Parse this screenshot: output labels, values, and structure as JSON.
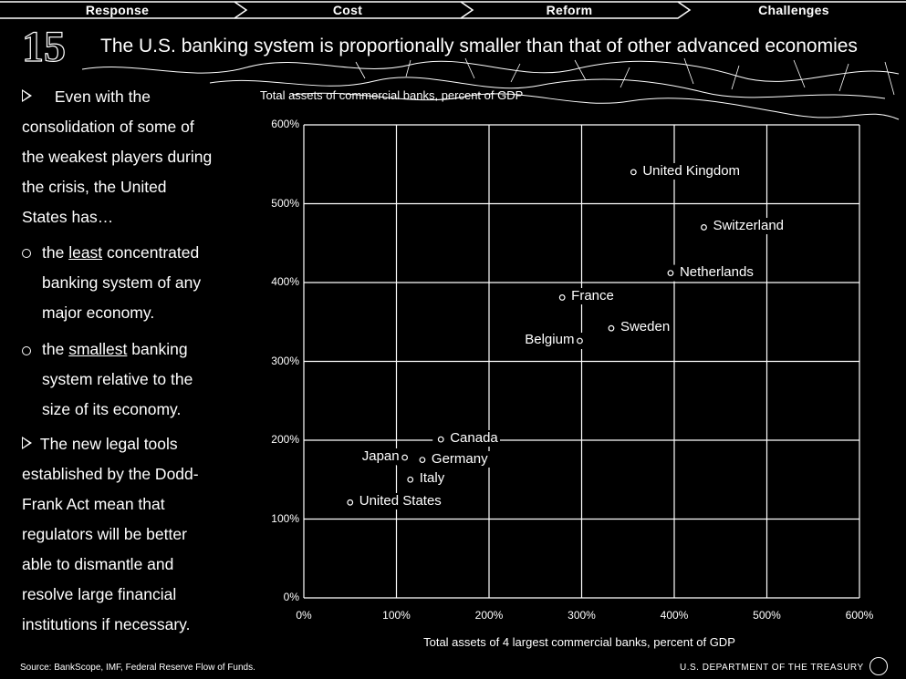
{
  "nav": {
    "tabs": [
      {
        "label": "Response"
      },
      {
        "label": "Cost"
      },
      {
        "label": "Reform"
      },
      {
        "label": "Challenges"
      }
    ]
  },
  "slide": {
    "number": "15",
    "title": "The U.S. banking system is proportionally smaller than that of other advanced economies"
  },
  "left_text": {
    "intro_1": "Even with the",
    "intro_2": "consolidation of some of",
    "intro_3": "the weakest players during",
    "intro_4": "the crisis, the United",
    "intro_5": "States has…",
    "b1_pre": "the ",
    "b1_u": "least",
    "b1_post": " concentrated",
    "b1_2": "banking system of any",
    "b1_3": "major economy.",
    "b2_pre": "the ",
    "b2_u": "smallest",
    "b2_post": " banking",
    "b2_2": "system relative to the",
    "b2_3": "size of its economy.",
    "p2_1": "The new legal tools",
    "p2_2": "established by the Dodd-",
    "p2_3": "Frank Act mean that",
    "p2_4": "regulators will be better",
    "p2_5": "able to dismantle and",
    "p2_6": "resolve large financial",
    "p2_7": "institutions if necessary."
  },
  "footer": {
    "source": "Source: BankScope, IMF, Federal Reserve Flow of Funds.",
    "agency": "U.S. DEPARTMENT OF THE TREASURY"
  },
  "chart_data": {
    "type": "scatter",
    "title": "Total assets of commercial banks, percent of GDP",
    "xlabel": "Total assets of 4 largest commercial banks, percent of GDP",
    "ylabel": "",
    "xlim": [
      0,
      600
    ],
    "ylim": [
      0,
      600
    ],
    "x_ticks": [
      0,
      100,
      200,
      300,
      400,
      500,
      600
    ],
    "y_ticks": [
      0,
      100,
      200,
      300,
      400,
      500,
      600
    ],
    "x_tick_labels": [
      "0%",
      "100%",
      "200%",
      "300%",
      "400%",
      "500%",
      "600%"
    ],
    "y_tick_labels": [
      "0%",
      "100%",
      "200%",
      "300%",
      "400%",
      "500%",
      "600%"
    ],
    "grid": true,
    "points": [
      {
        "label": "United Kingdom",
        "x": 356,
        "y": 540,
        "side": "right"
      },
      {
        "label": "Switzerland",
        "x": 432,
        "y": 470,
        "side": "right"
      },
      {
        "label": "Netherlands",
        "x": 396,
        "y": 412,
        "side": "right"
      },
      {
        "label": "France",
        "x": 279,
        "y": 381,
        "side": "right"
      },
      {
        "label": "Sweden",
        "x": 332,
        "y": 342,
        "side": "right"
      },
      {
        "label": "Belgium",
        "x": 298,
        "y": 326,
        "side": "left"
      },
      {
        "label": "Canada",
        "x": 148,
        "y": 201,
        "side": "right"
      },
      {
        "label": "Japan",
        "x": 109,
        "y": 178,
        "side": "left"
      },
      {
        "label": "Germany",
        "x": 128,
        "y": 175,
        "side": "right"
      },
      {
        "label": "Italy",
        "x": 115,
        "y": 150,
        "side": "right"
      },
      {
        "label": "United States",
        "x": 50,
        "y": 121,
        "side": "right"
      }
    ]
  }
}
